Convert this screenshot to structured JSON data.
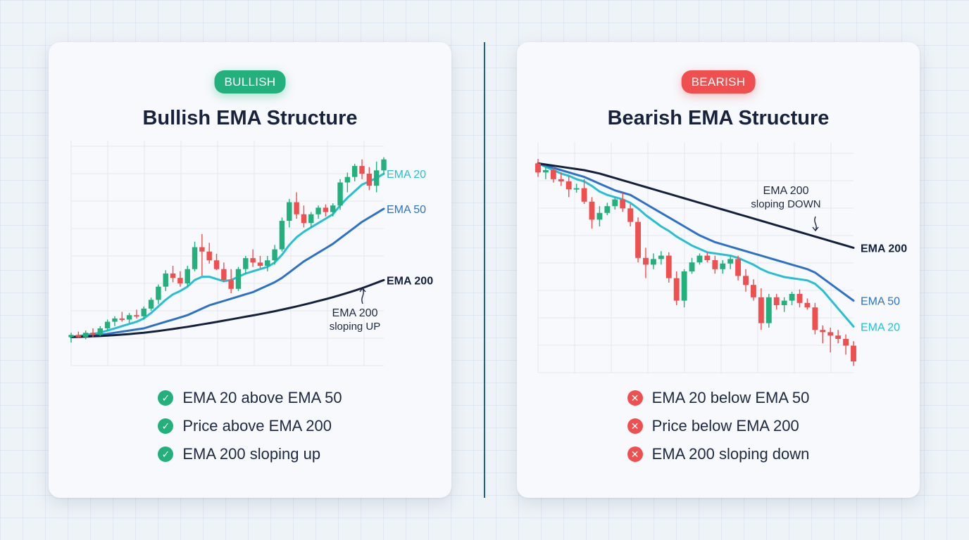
{
  "colors": {
    "bull_up": "#22b07d",
    "bear_down": "#ef4f4f",
    "ema20": "#26c0d3",
    "ema50": "#2d72c9",
    "ema200": "#14213d",
    "grid": "#e3e9f1"
  },
  "panels": {
    "bullish": {
      "badge": "BULLISH",
      "title": "Bullish EMA Structure",
      "checks": [
        "EMA 20 above EMA 50",
        "Price above EMA 200",
        "EMA 200 sloping up"
      ],
      "check_icon": "check-circle-icon"
    },
    "bearish": {
      "badge": "BEARISH",
      "title": "Bearish EMA Structure",
      "checks": [
        "EMA 20 below EMA 50",
        "Price below EMA 200",
        "EMA 200 sloping down"
      ],
      "check_icon": "x-circle-icon"
    }
  },
  "chart_data": [
    {
      "type": "candlestick",
      "title": "Bullish EMA Structure",
      "grid": true,
      "line_labels": [
        "EMA 20",
        "EMA 50",
        "EMA 200"
      ],
      "annotation": [
        "EMA 200",
        "sloping UP"
      ],
      "candles": [
        {
          "o": 66,
          "h": 70,
          "l": 61,
          "c": 68
        },
        {
          "o": 68,
          "h": 71,
          "l": 65,
          "c": 66
        },
        {
          "o": 66,
          "h": 72,
          "l": 64,
          "c": 70
        },
        {
          "o": 70,
          "h": 74,
          "l": 66,
          "c": 68
        },
        {
          "o": 68,
          "h": 76,
          "l": 67,
          "c": 74
        },
        {
          "o": 74,
          "h": 82,
          "l": 72,
          "c": 80
        },
        {
          "o": 80,
          "h": 85,
          "l": 76,
          "c": 83
        },
        {
          "o": 83,
          "h": 89,
          "l": 80,
          "c": 82
        },
        {
          "o": 82,
          "h": 88,
          "l": 79,
          "c": 86
        },
        {
          "o": 86,
          "h": 91,
          "l": 83,
          "c": 85
        },
        {
          "o": 85,
          "h": 94,
          "l": 82,
          "c": 92
        },
        {
          "o": 92,
          "h": 102,
          "l": 90,
          "c": 100
        },
        {
          "o": 100,
          "h": 114,
          "l": 96,
          "c": 112
        },
        {
          "o": 112,
          "h": 127,
          "l": 108,
          "c": 124
        },
        {
          "o": 124,
          "h": 131,
          "l": 116,
          "c": 120
        },
        {
          "o": 120,
          "h": 126,
          "l": 112,
          "c": 115
        },
        {
          "o": 115,
          "h": 131,
          "l": 112,
          "c": 128
        },
        {
          "o": 128,
          "h": 153,
          "l": 126,
          "c": 148
        },
        {
          "o": 148,
          "h": 160,
          "l": 122,
          "c": 144
        },
        {
          "o": 144,
          "h": 152,
          "l": 133,
          "c": 136
        },
        {
          "o": 136,
          "h": 142,
          "l": 127,
          "c": 128
        },
        {
          "o": 128,
          "h": 134,
          "l": 116,
          "c": 118
        },
        {
          "o": 118,
          "h": 128,
          "l": 106,
          "c": 110
        },
        {
          "o": 110,
          "h": 130,
          "l": 108,
          "c": 128
        },
        {
          "o": 128,
          "h": 140,
          "l": 124,
          "c": 138
        },
        {
          "o": 138,
          "h": 146,
          "l": 130,
          "c": 134
        },
        {
          "o": 134,
          "h": 140,
          "l": 129,
          "c": 131
        },
        {
          "o": 131,
          "h": 140,
          "l": 126,
          "c": 136
        },
        {
          "o": 136,
          "h": 150,
          "l": 132,
          "c": 146
        },
        {
          "o": 146,
          "h": 175,
          "l": 144,
          "c": 172
        },
        {
          "o": 172,
          "h": 192,
          "l": 166,
          "c": 189
        },
        {
          "o": 189,
          "h": 198,
          "l": 174,
          "c": 178
        },
        {
          "o": 178,
          "h": 186,
          "l": 166,
          "c": 170
        },
        {
          "o": 170,
          "h": 180,
          "l": 166,
          "c": 178
        },
        {
          "o": 178,
          "h": 186,
          "l": 174,
          "c": 184
        },
        {
          "o": 184,
          "h": 187,
          "l": 176,
          "c": 180
        },
        {
          "o": 180,
          "h": 188,
          "l": 176,
          "c": 186
        },
        {
          "o": 186,
          "h": 210,
          "l": 182,
          "c": 207
        },
        {
          "o": 207,
          "h": 216,
          "l": 198,
          "c": 212
        },
        {
          "o": 212,
          "h": 224,
          "l": 208,
          "c": 222
        },
        {
          "o": 222,
          "h": 228,
          "l": 210,
          "c": 215
        },
        {
          "o": 215,
          "h": 221,
          "l": 200,
          "c": 204
        },
        {
          "o": 204,
          "h": 226,
          "l": 198,
          "c": 218
        },
        {
          "o": 218,
          "h": 230,
          "l": 214,
          "c": 228
        }
      ],
      "series": [
        {
          "name": "EMA 20",
          "values": [
            66,
            67,
            68,
            69,
            70,
            72,
            74,
            76,
            78,
            80,
            83,
            88,
            94,
            100,
            105,
            108,
            112,
            118,
            121,
            121,
            119,
            117,
            118,
            121,
            124,
            126,
            128,
            130,
            134,
            141,
            150,
            157,
            162,
            166,
            170,
            174,
            178,
            186,
            193,
            199,
            205,
            208,
            211,
            215
          ]
        },
        {
          "name": "EMA 50",
          "values": [
            66,
            66.5,
            67,
            67.5,
            68,
            69,
            70,
            71,
            72,
            73,
            74,
            76,
            78,
            80,
            82,
            84,
            86,
            89,
            92,
            95,
            97,
            99,
            101,
            103,
            105,
            107,
            110,
            113,
            116,
            120,
            125,
            130,
            135,
            139,
            143,
            147,
            151,
            156,
            161,
            166,
            171,
            175,
            179,
            183
          ]
        },
        {
          "name": "EMA 200",
          "values": [
            66,
            66.2,
            66.4,
            66.7,
            67,
            67.4,
            67.8,
            68.3,
            68.8,
            69.4,
            70,
            70.8,
            71.6,
            72.5,
            73.4,
            74.4,
            75.4,
            76.5,
            77.6,
            78.7,
            79.8,
            81,
            82.2,
            83.4,
            84.6,
            85.8,
            87,
            88.3,
            89.6,
            91,
            92.5,
            94,
            95.6,
            97.2,
            98.9,
            100.6,
            102.4,
            104.3,
            106.3,
            108.4,
            110.6,
            113,
            115.5,
            118
          ]
        }
      ]
    },
    {
      "type": "candlestick",
      "title": "Bearish EMA Structure",
      "grid": true,
      "line_labels": [
        "EMA 200",
        "EMA 50",
        "EMA 20"
      ],
      "annotation": [
        "EMA 200",
        "sloping DOWN"
      ],
      "candles": [
        {
          "o": 206,
          "h": 210,
          "l": 194,
          "c": 198
        },
        {
          "o": 198,
          "h": 204,
          "l": 192,
          "c": 200
        },
        {
          "o": 200,
          "h": 203,
          "l": 189,
          "c": 192
        },
        {
          "o": 192,
          "h": 198,
          "l": 186,
          "c": 190
        },
        {
          "o": 190,
          "h": 195,
          "l": 176,
          "c": 183
        },
        {
          "o": 183,
          "h": 188,
          "l": 180,
          "c": 184
        },
        {
          "o": 184,
          "h": 192,
          "l": 170,
          "c": 172
        },
        {
          "o": 172,
          "h": 176,
          "l": 148,
          "c": 156
        },
        {
          "o": 156,
          "h": 168,
          "l": 150,
          "c": 162
        },
        {
          "o": 162,
          "h": 171,
          "l": 160,
          "c": 168
        },
        {
          "o": 168,
          "h": 176,
          "l": 165,
          "c": 174
        },
        {
          "o": 174,
          "h": 180,
          "l": 163,
          "c": 166
        },
        {
          "o": 166,
          "h": 170,
          "l": 150,
          "c": 154
        },
        {
          "o": 154,
          "h": 158,
          "l": 118,
          "c": 122
        },
        {
          "o": 122,
          "h": 131,
          "l": 104,
          "c": 116
        },
        {
          "o": 116,
          "h": 126,
          "l": 112,
          "c": 121
        },
        {
          "o": 121,
          "h": 128,
          "l": 116,
          "c": 124
        },
        {
          "o": 124,
          "h": 127,
          "l": 100,
          "c": 104
        },
        {
          "o": 104,
          "h": 110,
          "l": 80,
          "c": 84
        },
        {
          "o": 84,
          "h": 112,
          "l": 78,
          "c": 110
        },
        {
          "o": 110,
          "h": 122,
          "l": 108,
          "c": 118
        },
        {
          "o": 118,
          "h": 126,
          "l": 116,
          "c": 124
        },
        {
          "o": 124,
          "h": 127,
          "l": 118,
          "c": 120
        },
        {
          "o": 120,
          "h": 124,
          "l": 108,
          "c": 112
        },
        {
          "o": 112,
          "h": 120,
          "l": 108,
          "c": 117
        },
        {
          "o": 117,
          "h": 124,
          "l": 112,
          "c": 121
        },
        {
          "o": 121,
          "h": 124,
          "l": 102,
          "c": 106
        },
        {
          "o": 106,
          "h": 112,
          "l": 92,
          "c": 98
        },
        {
          "o": 98,
          "h": 103,
          "l": 84,
          "c": 87
        },
        {
          "o": 87,
          "h": 95,
          "l": 58,
          "c": 64
        },
        {
          "o": 64,
          "h": 90,
          "l": 60,
          "c": 87
        },
        {
          "o": 87,
          "h": 90,
          "l": 76,
          "c": 80
        },
        {
          "o": 80,
          "h": 87,
          "l": 74,
          "c": 84
        },
        {
          "o": 84,
          "h": 92,
          "l": 80,
          "c": 90
        },
        {
          "o": 90,
          "h": 94,
          "l": 78,
          "c": 82
        },
        {
          "o": 82,
          "h": 86,
          "l": 76,
          "c": 78
        },
        {
          "o": 78,
          "h": 82,
          "l": 54,
          "c": 58
        },
        {
          "o": 58,
          "h": 62,
          "l": 46,
          "c": 56
        },
        {
          "o": 56,
          "h": 60,
          "l": 38,
          "c": 53
        },
        {
          "o": 53,
          "h": 58,
          "l": 46,
          "c": 50
        },
        {
          "o": 50,
          "h": 54,
          "l": 36,
          "c": 44
        },
        {
          "o": 44,
          "h": 48,
          "l": 26,
          "c": 30
        }
      ],
      "series": [
        {
          "name": "EMA 20",
          "values": [
            206,
            203,
            200,
            197,
            195,
            192,
            190,
            186,
            181,
            178,
            176,
            174,
            171,
            166,
            160,
            155,
            150,
            146,
            141,
            137,
            133,
            130,
            127,
            126,
            125,
            124,
            122,
            119,
            116,
            112,
            109,
            107,
            105,
            104,
            103,
            102,
            99,
            93,
            85,
            77,
            69,
            61
          ]
        },
        {
          "name": "EMA 50",
          "values": [
            206,
            204,
            202,
            200,
            198,
            196,
            194,
            191,
            188,
            185,
            182,
            180,
            178,
            174,
            170,
            166,
            162,
            158,
            154,
            150,
            146,
            142,
            139,
            136,
            134,
            132,
            130,
            128,
            126,
            124,
            122,
            120,
            118,
            116,
            114,
            112,
            109,
            104,
            99,
            94,
            89,
            84
          ]
        },
        {
          "name": "EMA 200",
          "values": [
            206,
            205,
            204,
            203,
            202,
            201,
            200,
            198.5,
            197,
            195,
            193,
            191,
            189,
            187,
            185,
            183,
            181,
            179,
            177,
            175,
            173,
            171,
            169,
            167,
            165,
            163,
            161,
            159,
            157,
            155,
            153,
            151,
            149,
            147,
            145,
            143,
            141,
            139,
            137,
            135,
            133,
            131
          ]
        }
      ]
    }
  ]
}
